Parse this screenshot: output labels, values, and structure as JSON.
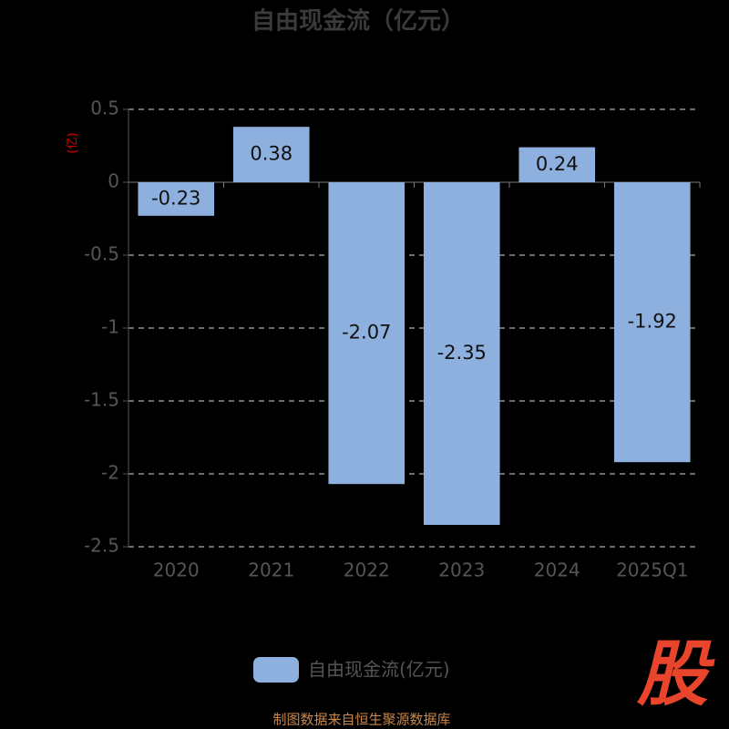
{
  "chart_data": {
    "type": "bar",
    "title": "自由现金流（亿元）",
    "y_label": "(亿)",
    "categories": [
      "2020",
      "2021",
      "2022",
      "2023",
      "2024",
      "2025Q1"
    ],
    "series": [
      {
        "name": "自由现金流(亿元)",
        "color": "#8eb0de",
        "values": [
          -0.23,
          0.38,
          -2.07,
          -2.35,
          0.24,
          -1.92
        ]
      }
    ],
    "ylim": [
      -2.5,
      0.5
    ],
    "yticks": [
      0.5,
      0,
      -0.5,
      -1,
      -1.5,
      -2,
      -2.5
    ],
    "grid": true,
    "source": "制图数据来自恒生聚源数据库",
    "logo": "股"
  }
}
